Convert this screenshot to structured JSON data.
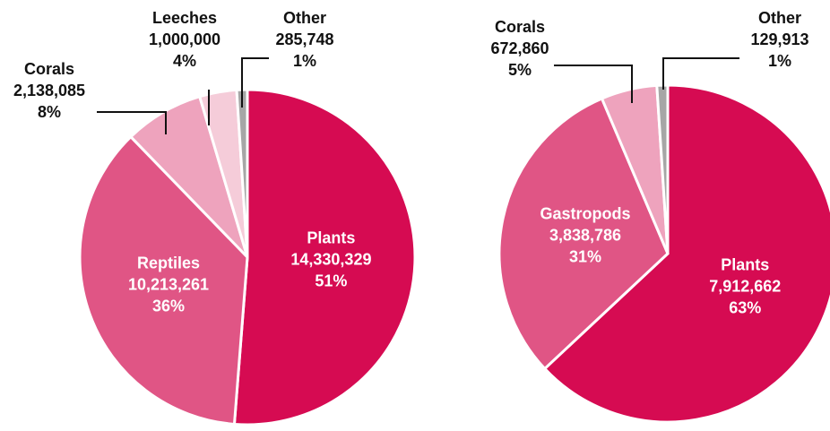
{
  "chart_data": [
    {
      "type": "pie",
      "categories": [
        "Plants",
        "Reptiles",
        "Corals",
        "Leeches",
        "Other"
      ],
      "values": [
        14330329,
        10213261,
        2138085,
        1000000,
        285748
      ],
      "value_labels": [
        "14,330,329",
        "10,213,261",
        "2,138,085",
        "1,000,000",
        "285,748"
      ],
      "percent_labels": [
        "51%",
        "36%",
        "8%",
        "4%",
        "1%"
      ],
      "colors": [
        "#d60b52",
        "#e05585",
        "#eea3bd",
        "#f5ccd9",
        "#a6a6a6"
      ]
    },
    {
      "type": "pie",
      "categories": [
        "Plants",
        "Gastropods",
        "Corals",
        "Other"
      ],
      "values": [
        7912662,
        3838786,
        672860,
        129913
      ],
      "value_labels": [
        "7,912,662",
        "3,838,786",
        "672,860",
        "129,913"
      ],
      "percent_labels": [
        "63%",
        "31%",
        "5%",
        "1%"
      ],
      "colors": [
        "#d60b52",
        "#e05585",
        "#eea3bd",
        "#a6a6a6"
      ]
    }
  ]
}
